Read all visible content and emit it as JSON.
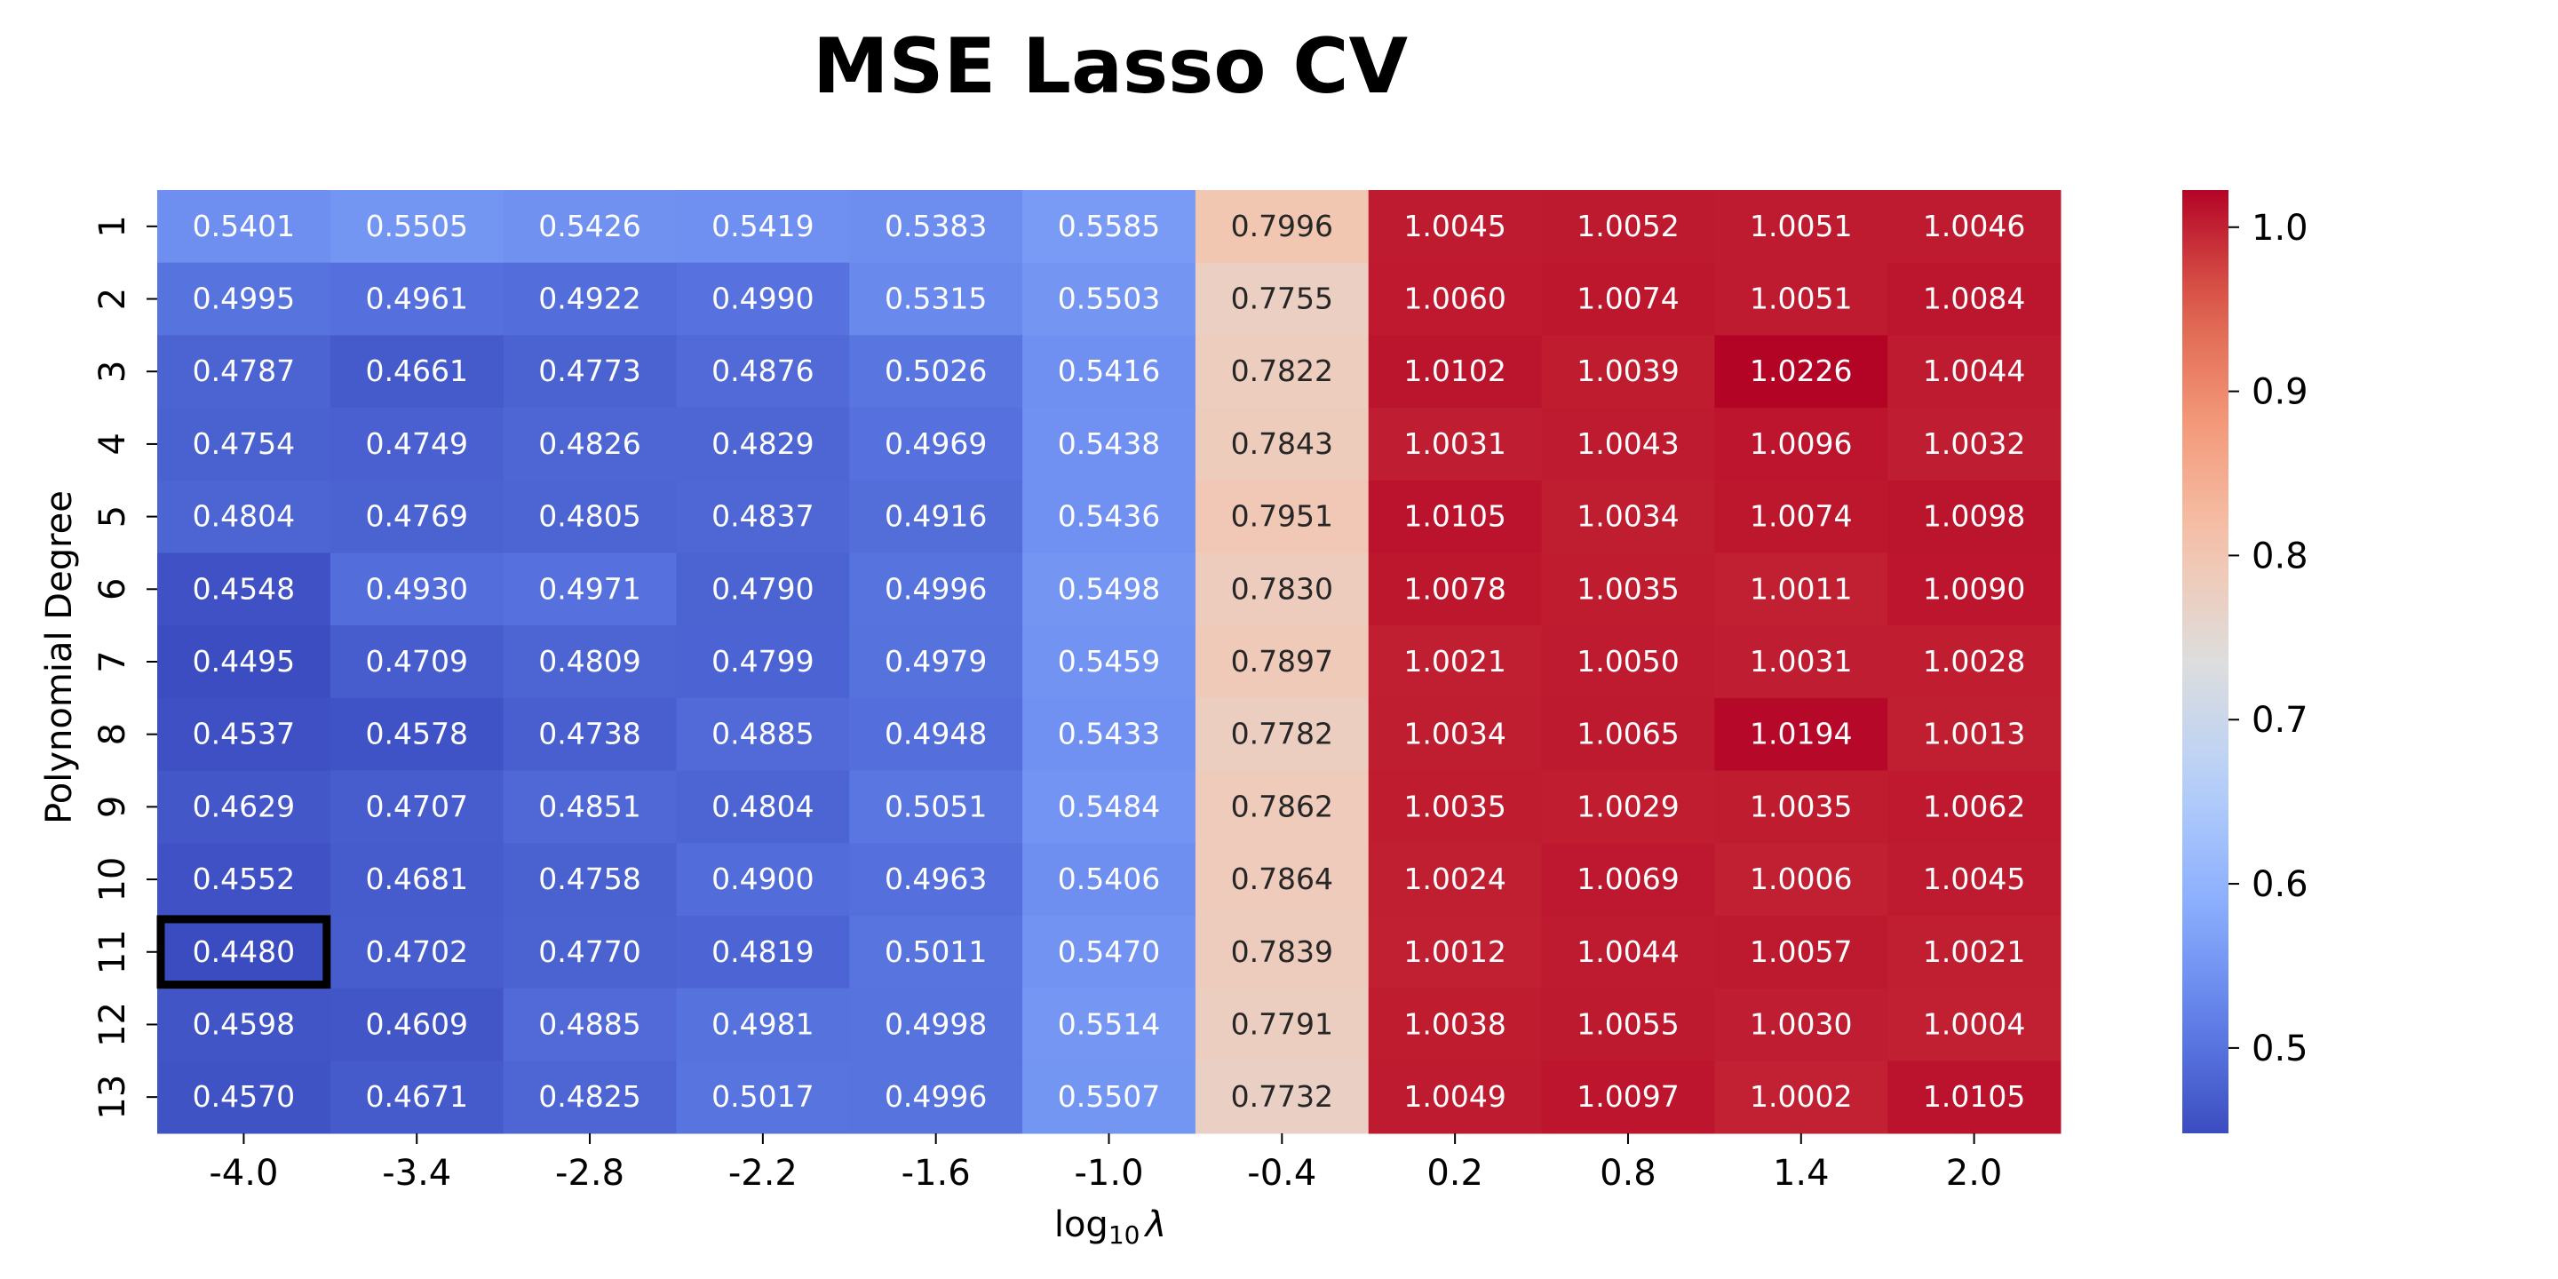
{
  "chart_data": {
    "type": "heatmap",
    "title": "MSE Lasso CV",
    "xlabel": "log",
    "xlabel_sub": "10",
    "xlabel_symbol": "λ",
    "ylabel": "Polynomial Degree",
    "x": [
      "-4.0",
      "-3.4",
      "-2.8",
      "-2.2",
      "-1.6",
      "-1.0",
      "-0.4",
      "0.2",
      "0.8",
      "1.4",
      "2.0"
    ],
    "y": [
      "1",
      "2",
      "3",
      "4",
      "5",
      "6",
      "7",
      "8",
      "9",
      "10",
      "11",
      "12",
      "13"
    ],
    "values": [
      [
        0.5401,
        0.5505,
        0.5426,
        0.5419,
        0.5383,
        0.5585,
        0.7996,
        1.0045,
        1.0052,
        1.0051,
        1.0046
      ],
      [
        0.4995,
        0.4961,
        0.4922,
        0.499,
        0.5315,
        0.5503,
        0.7755,
        1.006,
        1.0074,
        1.0051,
        1.0084
      ],
      [
        0.4787,
        0.4661,
        0.4773,
        0.4876,
        0.5026,
        0.5416,
        0.7822,
        1.0102,
        1.0039,
        1.0226,
        1.0044
      ],
      [
        0.4754,
        0.4749,
        0.4826,
        0.4829,
        0.4969,
        0.5438,
        0.7843,
        1.0031,
        1.0043,
        1.0096,
        1.0032
      ],
      [
        0.4804,
        0.4769,
        0.4805,
        0.4837,
        0.4916,
        0.5436,
        0.7951,
        1.0105,
        1.0034,
        1.0074,
        1.0098
      ],
      [
        0.4548,
        0.493,
        0.4971,
        0.479,
        0.4996,
        0.5498,
        0.783,
        1.0078,
        1.0035,
        1.0011,
        1.009
      ],
      [
        0.4495,
        0.4709,
        0.4809,
        0.4799,
        0.4979,
        0.5459,
        0.7897,
        1.0021,
        1.005,
        1.0031,
        1.0028
      ],
      [
        0.4537,
        0.4578,
        0.4738,
        0.4885,
        0.4948,
        0.5433,
        0.7782,
        1.0034,
        1.0065,
        1.0194,
        1.0013
      ],
      [
        0.4629,
        0.4707,
        0.4851,
        0.4804,
        0.5051,
        0.5484,
        0.7862,
        1.0035,
        1.0029,
        1.0035,
        1.0062
      ],
      [
        0.4552,
        0.4681,
        0.4758,
        0.49,
        0.4963,
        0.5406,
        0.7864,
        1.0024,
        1.0069,
        1.0006,
        1.0045
      ],
      [
        0.448,
        0.4702,
        0.477,
        0.4819,
        0.5011,
        0.547,
        0.7839,
        1.0012,
        1.0044,
        1.0057,
        1.0021
      ],
      [
        0.4598,
        0.4609,
        0.4885,
        0.4981,
        0.4998,
        0.5514,
        0.7791,
        1.0038,
        1.0055,
        1.003,
        1.0004
      ],
      [
        0.457,
        0.4671,
        0.4825,
        0.5017,
        0.4996,
        0.5507,
        0.7732,
        1.0049,
        1.0097,
        1.0002,
        1.0105
      ]
    ],
    "value_format": "4 decimals",
    "colormap": "coolwarm",
    "vmin": 0.448,
    "vmax": 1.0226,
    "colorbar_ticks": [
      "0.5",
      "0.6",
      "0.7",
      "0.8",
      "0.9",
      "1.0"
    ],
    "highlight": {
      "row_label": "11",
      "col_label": "-4.0",
      "value": 0.448,
      "color": "#000000"
    },
    "grid": false,
    "legend": "colorbar at right"
  }
}
